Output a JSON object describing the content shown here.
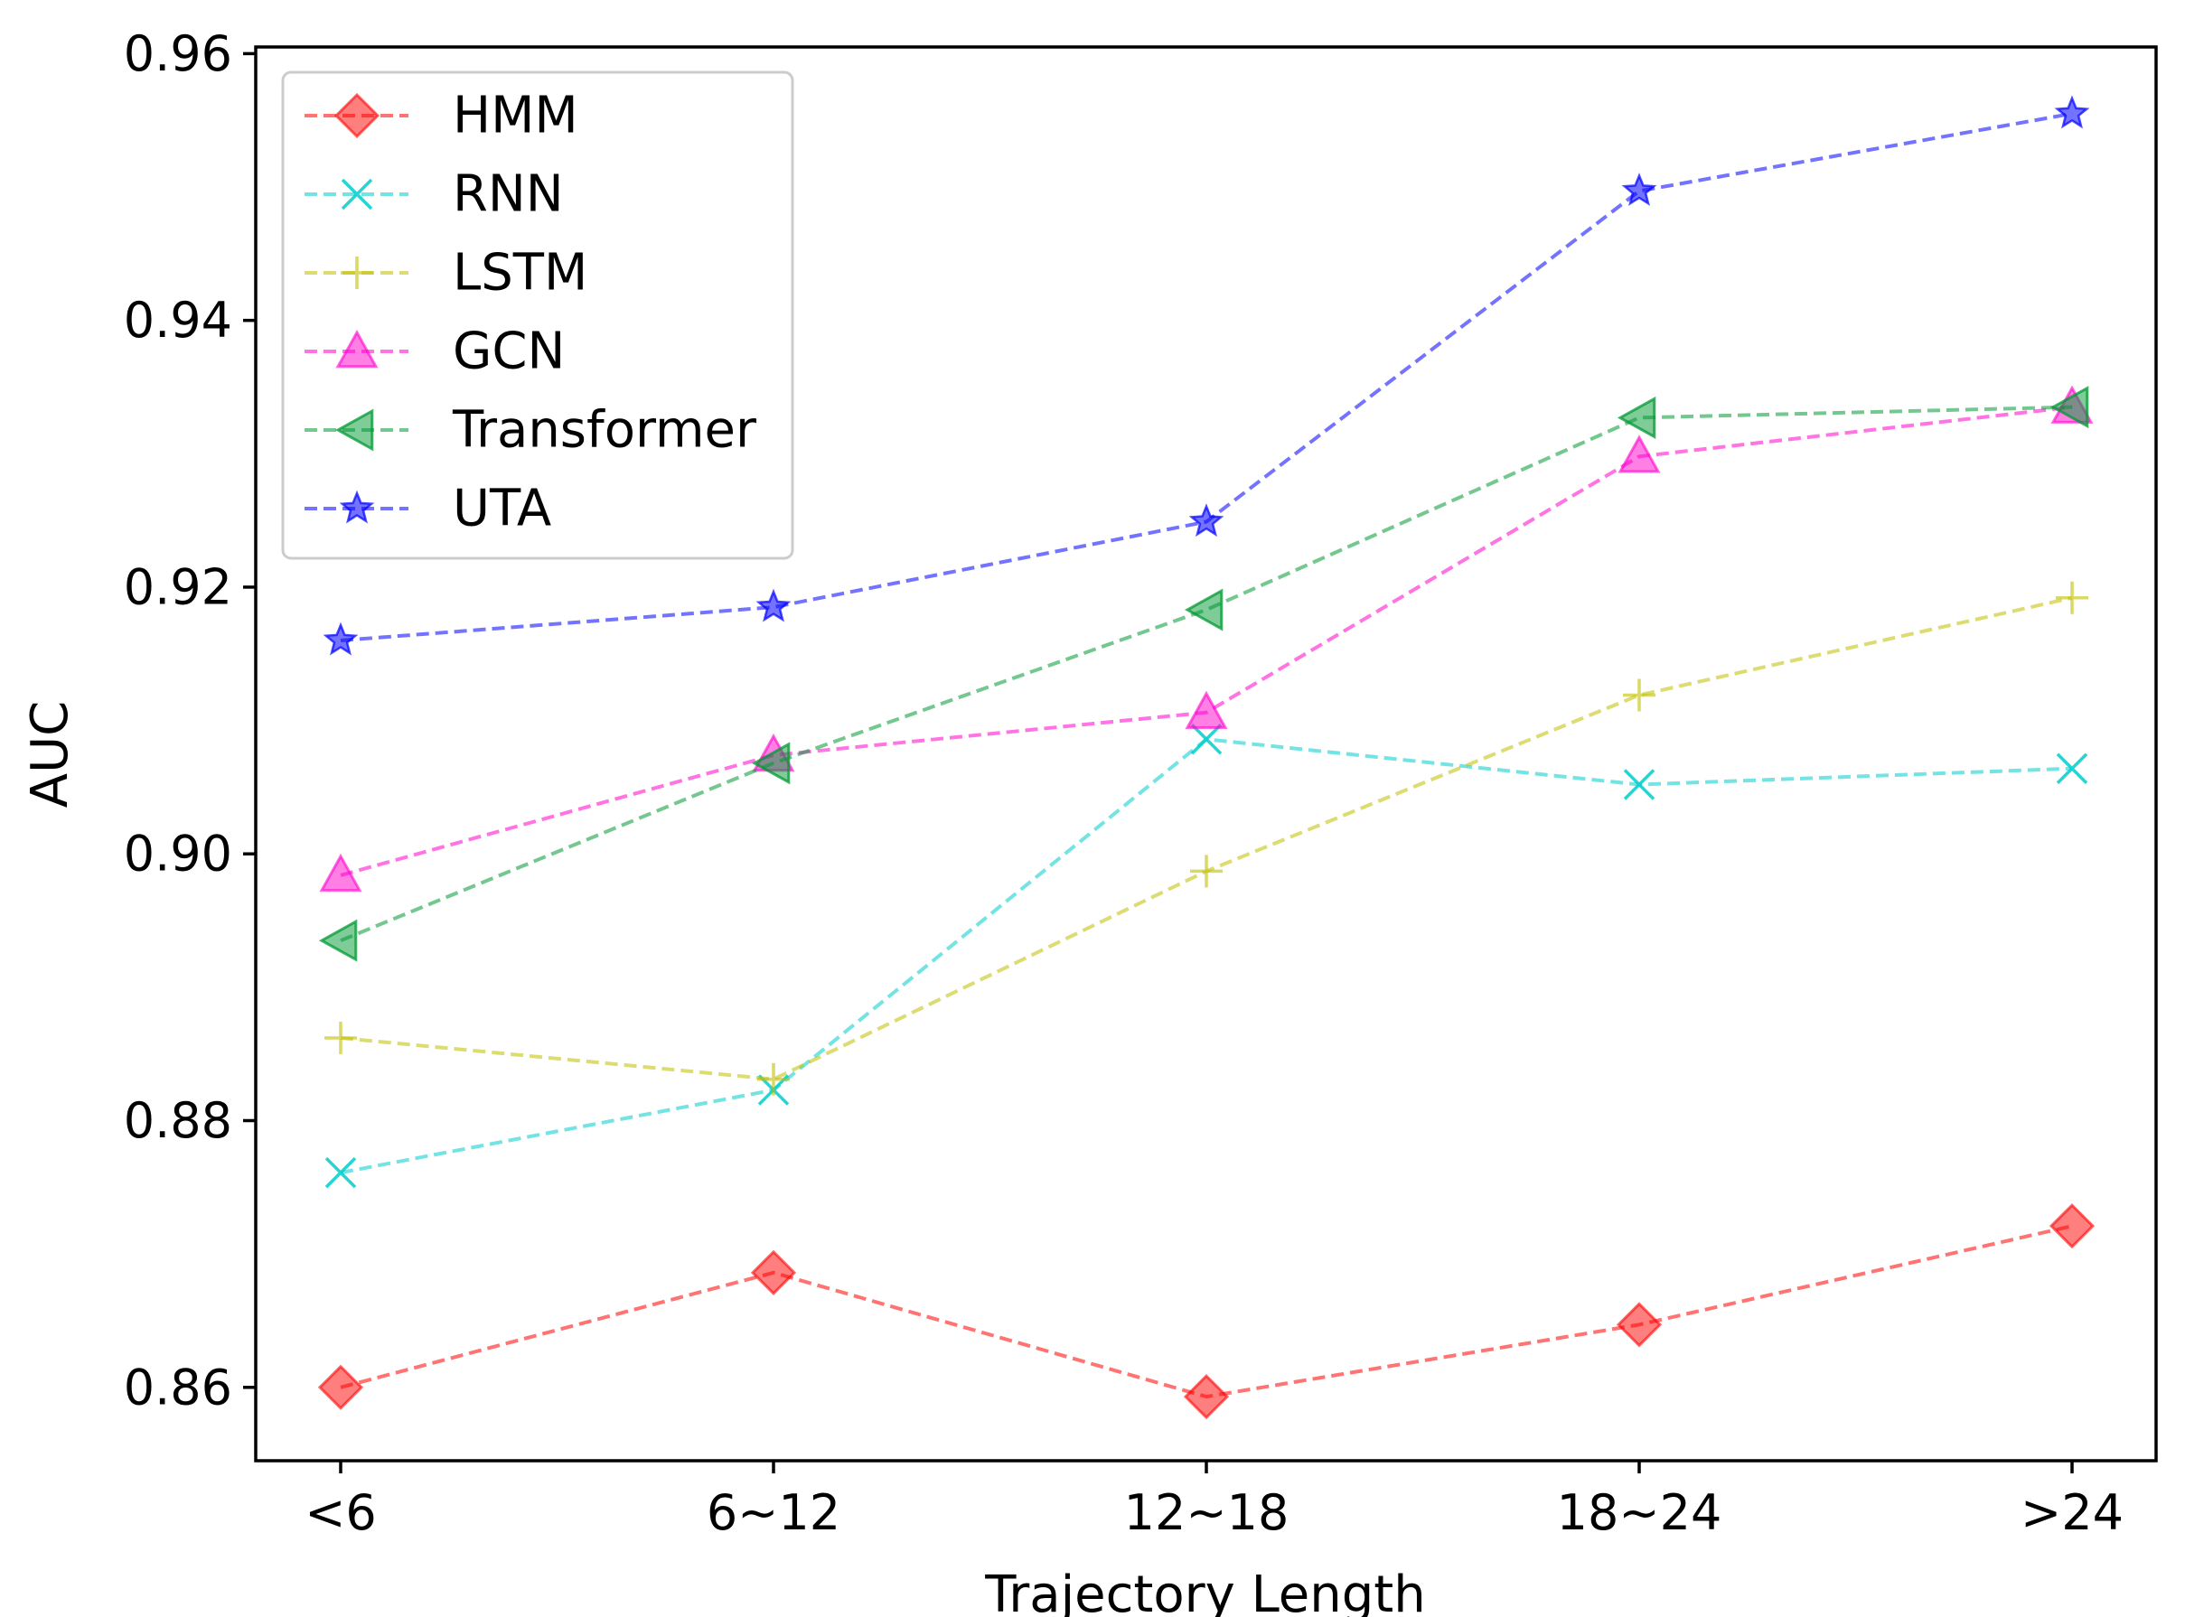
{
  "chart_data": {
    "type": "line",
    "title": "",
    "xlabel": "Trajectory Length",
    "ylabel": "AUC",
    "categories": [
      "<6",
      "6~12",
      "12~18",
      "18~24",
      ">24"
    ],
    "ylim": [
      0.8545,
      0.9605
    ],
    "yticks": [
      0.86,
      0.88,
      0.9,
      0.92,
      0.94,
      0.96
    ],
    "ytick_labels": [
      "0.86",
      "0.88",
      "0.90",
      "0.92",
      "0.94",
      "0.96"
    ],
    "grid": false,
    "legend_position": "top-left",
    "series": [
      {
        "name": "HMM",
        "marker": "diamond",
        "color": "#ff0000",
        "values": [
          0.86,
          0.8686,
          0.8593,
          0.8647,
          0.8721
        ]
      },
      {
        "name": "RNN",
        "marker": "x",
        "color": "#00cccc",
        "values": [
          0.8761,
          0.8823,
          0.9086,
          0.9052,
          0.9064
        ]
      },
      {
        "name": "LSTM",
        "marker": "plus",
        "color": "#bfbf00",
        "values": [
          0.8862,
          0.8831,
          0.8987,
          0.9119,
          0.9192
        ]
      },
      {
        "name": "GCN",
        "marker": "triangle-up",
        "color": "#ff00cc",
        "values": [
          0.8984,
          0.9074,
          0.9106,
          0.9298,
          0.9335
        ]
      },
      {
        "name": "Transformer",
        "marker": "triangle-left",
        "color": "#009933",
        "values": [
          0.8935,
          0.9068,
          0.9183,
          0.9327,
          0.9335
        ]
      },
      {
        "name": "UTA",
        "marker": "star",
        "color": "#0000ff",
        "values": [
          0.916,
          0.9185,
          0.9249,
          0.9497,
          0.9555
        ]
      }
    ]
  }
}
